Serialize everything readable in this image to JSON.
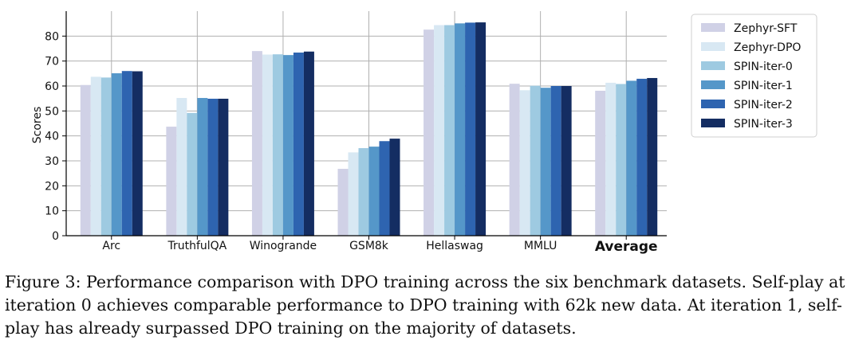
{
  "chart_data": {
    "type": "bar",
    "ylabel": "Scores",
    "ylim": [
      0,
      90
    ],
    "yticks": [
      0,
      10,
      20,
      30,
      40,
      50,
      60,
      70,
      80
    ],
    "grid": true,
    "legend_position": "right",
    "categories": [
      "Arc",
      "TruthfulQA",
      "Winogrande",
      "GSM8k",
      "Hellaswag",
      "MMLU",
      "Average"
    ],
    "bold_categories": [
      "Average"
    ],
    "series": [
      {
        "name": "Zephyr-SFT",
        "color": "#d0d1e6",
        "values": [
          60.4,
          43.7,
          74.0,
          26.8,
          82.6,
          60.9,
          58.1
        ]
      },
      {
        "name": "Zephyr-DPO",
        "color": "#d8e8f3",
        "values": [
          63.7,
          55.2,
          72.6,
          33.4,
          84.4,
          58.3,
          61.3
        ]
      },
      {
        "name": "SPIN-iter-0",
        "color": "#9ecae1",
        "values": [
          63.4,
          49.2,
          72.7,
          35.1,
          84.4,
          60.1,
          60.8
        ]
      },
      {
        "name": "SPIN-iter-1",
        "color": "#5597c9",
        "values": [
          65.1,
          55.2,
          72.4,
          35.7,
          85.1,
          59.3,
          62.1
        ]
      },
      {
        "name": "SPIN-iter-2",
        "color": "#2e64b0",
        "values": [
          66.0,
          54.9,
          73.4,
          37.9,
          85.4,
          60.0,
          62.9
        ]
      },
      {
        "name": "SPIN-iter-3",
        "color": "#142d62",
        "values": [
          65.9,
          54.9,
          73.8,
          38.9,
          85.5,
          60.0,
          63.2
        ]
      }
    ]
  },
  "caption": "Figure 3: Performance comparison with DPO training across the six benchmark datasets. Self-play at iteration 0 achieves comparable performance to DPO training with 62k new data. At iteration 1, self-play has already surpassed DPO training on the majority of datasets."
}
